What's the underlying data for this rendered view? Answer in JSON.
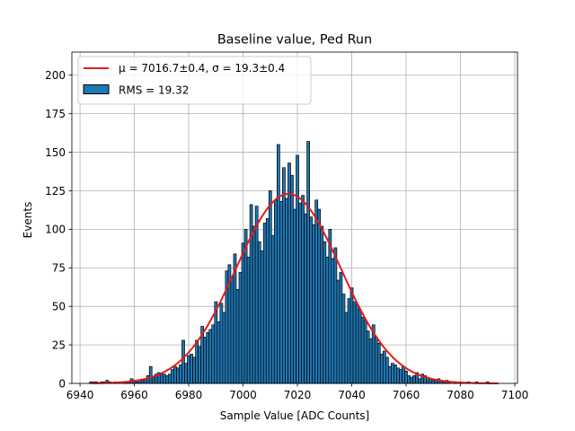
{
  "chart_data": {
    "type": "bar",
    "title": "Baseline value, Ped Run",
    "xlabel": "Sample Value [ADC Counts]",
    "ylabel": "Events",
    "xlim": [
      6937,
      7101
    ],
    "ylim": [
      0,
      215
    ],
    "xticks": [
      6940,
      6960,
      6980,
      7000,
      7020,
      7040,
      7060,
      7080,
      7100
    ],
    "yticks": [
      0,
      25,
      50,
      75,
      100,
      125,
      150,
      175,
      200
    ],
    "grid": true,
    "legend_position": "top-left",
    "colors": {
      "bars": "#1f77b4",
      "bar_edge": "#000000",
      "fit": "#e41a1c",
      "grid": "#b0b0b0"
    },
    "histogram": {
      "name": "RMS = 19.32",
      "bin_width": 1,
      "bins": [
        [
          6944,
          1
        ],
        [
          6945,
          1
        ],
        [
          6946,
          1
        ],
        [
          6948,
          1
        ],
        [
          6949,
          1
        ],
        [
          6950,
          2
        ],
        [
          6951,
          1
        ],
        [
          6953,
          1
        ],
        [
          6956,
          1
        ],
        [
          6957,
          1
        ],
        [
          6958,
          1
        ],
        [
          6959,
          3
        ],
        [
          6960,
          2
        ],
        [
          6961,
          1
        ],
        [
          6962,
          2
        ],
        [
          6963,
          2
        ],
        [
          6964,
          3
        ],
        [
          6965,
          5
        ],
        [
          6966,
          11
        ],
        [
          6967,
          4
        ],
        [
          6968,
          6
        ],
        [
          6969,
          7
        ],
        [
          6970,
          6
        ],
        [
          6971,
          6
        ],
        [
          6972,
          5
        ],
        [
          6973,
          6
        ],
        [
          6974,
          9
        ],
        [
          6975,
          11
        ],
        [
          6976,
          10
        ],
        [
          6977,
          12
        ],
        [
          6978,
          28
        ],
        [
          6979,
          13
        ],
        [
          6980,
          18
        ],
        [
          6981,
          19
        ],
        [
          6982,
          17
        ],
        [
          6983,
          28
        ],
        [
          6984,
          24
        ],
        [
          6985,
          37
        ],
        [
          6986,
          30
        ],
        [
          6987,
          33
        ],
        [
          6988,
          35
        ],
        [
          6989,
          38
        ],
        [
          6990,
          53
        ],
        [
          6991,
          40
        ],
        [
          6992,
          52
        ],
        [
          6993,
          46
        ],
        [
          6994,
          73
        ],
        [
          6995,
          77
        ],
        [
          6996,
          69
        ],
        [
          6997,
          84
        ],
        [
          6998,
          61
        ],
        [
          6999,
          72
        ],
        [
          7000,
          91
        ],
        [
          7001,
          100
        ],
        [
          7002,
          82
        ],
        [
          7003,
          116
        ],
        [
          7004,
          102
        ],
        [
          7005,
          115
        ],
        [
          7006,
          92
        ],
        [
          7007,
          86
        ],
        [
          7008,
          104
        ],
        [
          7009,
          107
        ],
        [
          7010,
          125
        ],
        [
          7011,
          96
        ],
        [
          7012,
          119
        ],
        [
          7013,
          155
        ],
        [
          7014,
          118
        ],
        [
          7015,
          140
        ],
        [
          7016,
          120
        ],
        [
          7017,
          143
        ],
        [
          7018,
          135
        ],
        [
          7019,
          113
        ],
        [
          7020,
          148
        ],
        [
          7021,
          117
        ],
        [
          7022,
          122
        ],
        [
          7023,
          110
        ],
        [
          7024,
          157
        ],
        [
          7025,
          108
        ],
        [
          7026,
          103
        ],
        [
          7027,
          119
        ],
        [
          7028,
          113
        ],
        [
          7029,
          102
        ],
        [
          7030,
          92
        ],
        [
          7031,
          82
        ],
        [
          7032,
          100
        ],
        [
          7033,
          81
        ],
        [
          7034,
          88
        ],
        [
          7035,
          67
        ],
        [
          7036,
          72
        ],
        [
          7037,
          58
        ],
        [
          7038,
          46
        ],
        [
          7039,
          55
        ],
        [
          7040,
          62
        ],
        [
          7041,
          53
        ],
        [
          7042,
          51
        ],
        [
          7043,
          48
        ],
        [
          7044,
          43
        ],
        [
          7045,
          41
        ],
        [
          7046,
          34
        ],
        [
          7047,
          29
        ],
        [
          7048,
          38
        ],
        [
          7049,
          30
        ],
        [
          7050,
          26
        ],
        [
          7051,
          19
        ],
        [
          7052,
          21
        ],
        [
          7053,
          17
        ],
        [
          7054,
          11
        ],
        [
          7055,
          13
        ],
        [
          7056,
          12
        ],
        [
          7057,
          10
        ],
        [
          7058,
          9
        ],
        [
          7059,
          11
        ],
        [
          7060,
          8
        ],
        [
          7061,
          5
        ],
        [
          7062,
          4
        ],
        [
          7063,
          5
        ],
        [
          7064,
          7
        ],
        [
          7065,
          3
        ],
        [
          7066,
          6
        ],
        [
          7067,
          5
        ],
        [
          7068,
          4
        ],
        [
          7069,
          3
        ],
        [
          7070,
          2
        ],
        [
          7071,
          2
        ],
        [
          7072,
          3
        ],
        [
          7073,
          2
        ],
        [
          7074,
          1
        ],
        [
          7075,
          2
        ],
        [
          7076,
          1
        ],
        [
          7078,
          1
        ],
        [
          7080,
          1
        ],
        [
          7083,
          1
        ],
        [
          7086,
          1
        ],
        [
          7090,
          1
        ]
      ]
    },
    "fit": {
      "name": "μ = 7016.7±0.4, σ = 19.3±0.4",
      "type": "gaussian",
      "mu": 7016.7,
      "sigma": 19.3,
      "amplitude": 123,
      "x_range": [
        6944,
        7094
      ]
    }
  }
}
